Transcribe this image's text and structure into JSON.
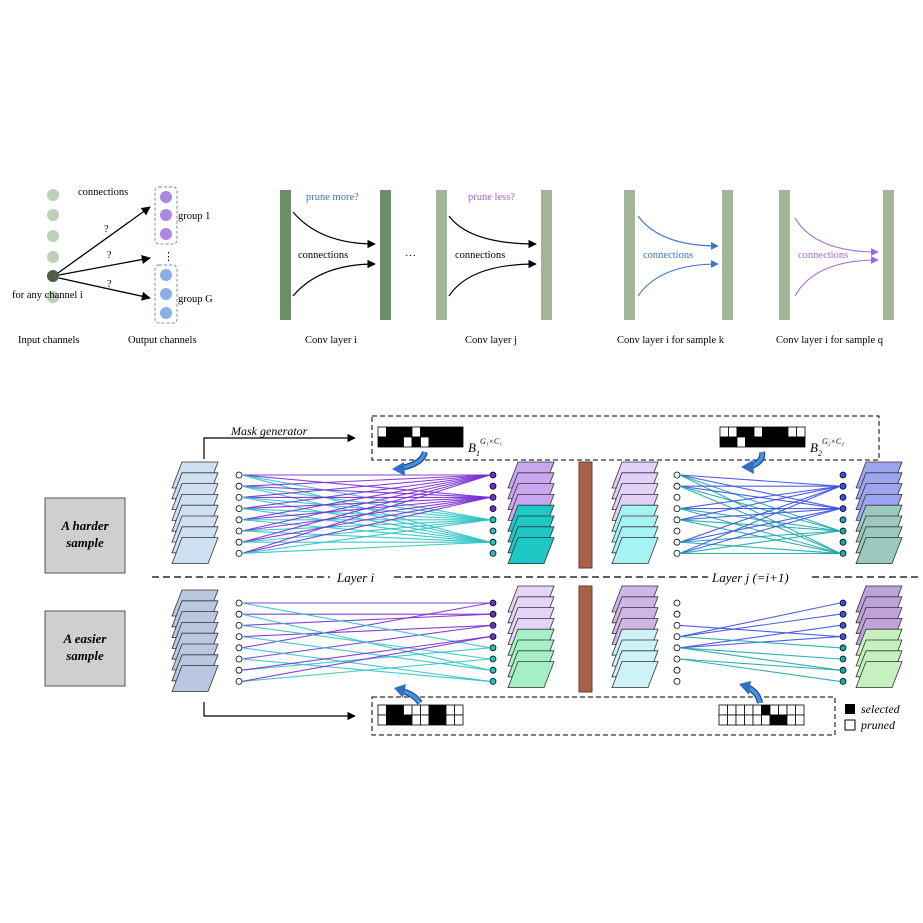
{
  "top_left": {
    "connections_label": "connections",
    "question_mark": "?",
    "group1_label": "group 1",
    "groupG_label": "group G",
    "dots": "⋮",
    "any_channel_label": "for any channel i",
    "input_caption": "Input channels",
    "output_caption": "Output channels"
  },
  "top_middle": {
    "prune_more": "prune more?",
    "prune_less": "prune less?",
    "connections_label": "connections",
    "ellipsis": "···",
    "caption_i": "Conv layer i",
    "caption_j": "Conv layer j"
  },
  "top_right": {
    "connections_label": "connections",
    "caption_k": "Conv layer i for sample k",
    "caption_q": "Conv layer i for sample q"
  },
  "bottom": {
    "mask_generator": "Mask generator",
    "b1_base": "B",
    "b1_sub": "1",
    "b1_sup": "G₁×C₁",
    "b2_base": "B",
    "b2_sub": "2",
    "b2_sup": "G₂×C₂",
    "harder_sample": [
      "A harder",
      "sample"
    ],
    "easier_sample": [
      "A easier",
      "sample"
    ],
    "layer_i": "Layer i",
    "layer_j": "Layer j (=i+1)",
    "legend_selected": "selected",
    "legend_pruned": "pruned"
  },
  "colors": {
    "dark_green": "#6a8f66",
    "light_green": "#a3b596",
    "blue": "#3a73c8",
    "purple": "#a066e0",
    "teal": "#2ec4c4",
    "violet": "#7a2ed0",
    "brown": "#a8614a"
  }
}
